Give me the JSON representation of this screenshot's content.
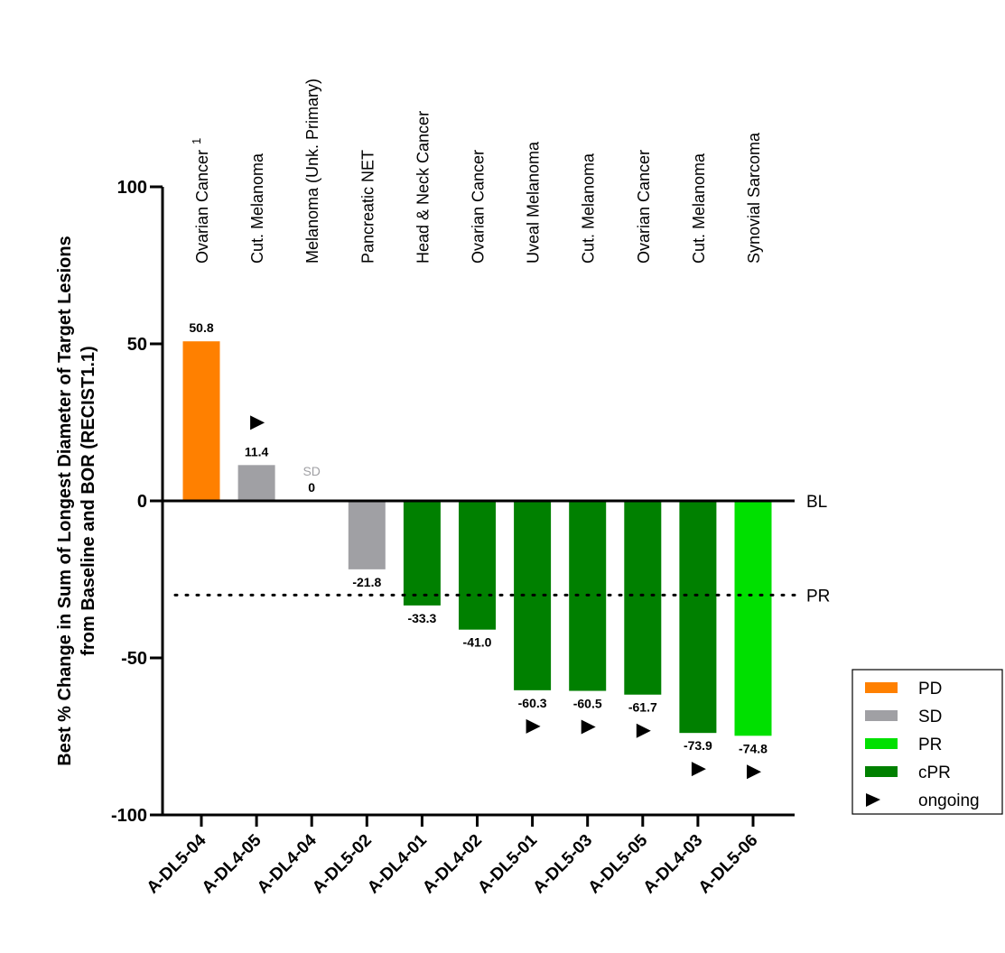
{
  "chart_data": {
    "type": "bar",
    "ylabel_line1": "Best % Change in Sum of Longest Diameter of Target Lesions",
    "ylabel_line2": "from Baseline and BOR (RECIST1.1)",
    "ylim": [
      -100,
      100
    ],
    "yticks": [
      100,
      50,
      0,
      -50,
      -100
    ],
    "pr_threshold": -30,
    "reference_labels": {
      "baseline": "BL",
      "pr": "PR"
    },
    "colors": {
      "PD": "#FF8000",
      "SD": "#A0A0A4",
      "PR": "#00E000",
      "cPR": "#008000",
      "marker": "#000000"
    },
    "categories": [
      "A-DL5-04",
      "A-DL4-05",
      "A-DL4-04",
      "A-DL5-02",
      "A-DL4-01",
      "A-DL4-02",
      "A-DL5-01",
      "A-DL5-03",
      "A-DL5-05",
      "A-DL4-03",
      "A-DL5-06"
    ],
    "tumor_types": [
      "Ovarian Cancer",
      "Cut. Melanoma",
      "Melanoma (Unk. Primary)",
      "Pancreatic NET",
      "Head & Neck Cancer",
      "Ovarian Cancer",
      "Uveal Melanoma",
      "Cut. Melanoma",
      "Ovarian Cancer",
      "Cut. Melanoma",
      "Synovial Sarcoma"
    ],
    "first_tumor_superscript": "1",
    "values": [
      50.8,
      11.4,
      0,
      -21.8,
      -33.3,
      -41.0,
      -60.3,
      -60.5,
      -61.7,
      -73.9,
      -74.8
    ],
    "value_labels": [
      "50.8",
      "11.4",
      "0",
      "-21.8",
      "-33.3",
      "-41.0",
      "-60.3",
      "-60.5",
      "-61.7",
      "-73.9",
      "-74.8"
    ],
    "bor": [
      "PD",
      "SD",
      "SD",
      "SD",
      "cPR",
      "cPR",
      "cPR",
      "cPR",
      "cPR",
      "cPR",
      "PR"
    ],
    "zero_bar_annotation": "SD",
    "ongoing": [
      false,
      true,
      false,
      false,
      false,
      false,
      true,
      true,
      true,
      true,
      true
    ],
    "legend": [
      {
        "key": "PD",
        "label": "PD"
      },
      {
        "key": "SD",
        "label": "SD"
      },
      {
        "key": "PR",
        "label": "PR"
      },
      {
        "key": "cPR",
        "label": "cPR"
      },
      {
        "key": "ongoing",
        "label": "ongoing"
      }
    ],
    "legend_position": "right"
  }
}
